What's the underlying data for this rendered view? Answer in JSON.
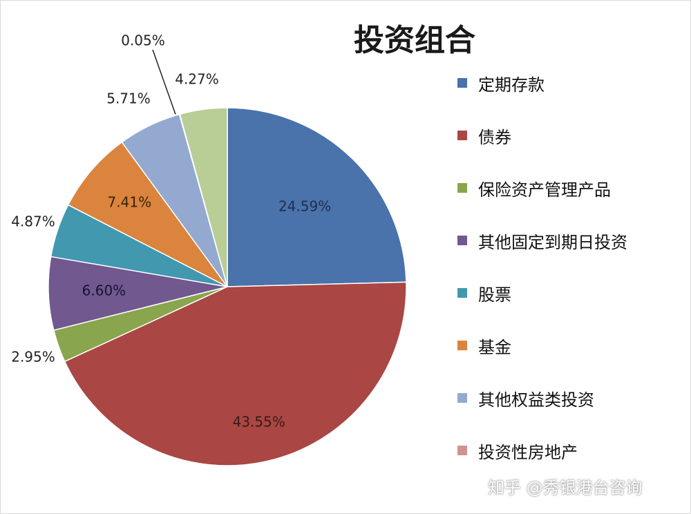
{
  "chart_data": {
    "type": "pie",
    "title": "投资组合",
    "legend_position": "right",
    "slices": [
      {
        "name": "定期存款",
        "value": 24.59,
        "label": "24.59%",
        "color": "#4a72ab"
      },
      {
        "name": "债券",
        "value": 43.55,
        "label": "43.55%",
        "color": "#aa4643"
      },
      {
        "name": "保险资产管理产品",
        "value": 2.95,
        "label": "2.95%",
        "color": "#89a54e"
      },
      {
        "name": "其他固定到期日投资",
        "value": 6.6,
        "label": "6.60%",
        "color": "#71588f"
      },
      {
        "name": "股票",
        "value": 4.87,
        "label": "4.87%",
        "color": "#4198af"
      },
      {
        "name": "基金",
        "value": 7.41,
        "label": "7.41%",
        "color": "#db843d"
      },
      {
        "name": "其他权益类投资",
        "value": 5.71,
        "label": "5.71%",
        "color": "#93a9cf"
      },
      {
        "name": "投资性房地产",
        "value": 0.05,
        "label": "0.05%",
        "color": "#d19392"
      },
      {
        "name": "",
        "value": 4.27,
        "label": "4.27%",
        "color": "#b9cd96"
      }
    ]
  },
  "legend": {
    "items": [
      {
        "label": "定期存款",
        "color": "#4a72ab"
      },
      {
        "label": "债券",
        "color": "#aa4643"
      },
      {
        "label": "保险资产管理产品",
        "color": "#89a54e"
      },
      {
        "label": "其他固定到期日投资",
        "color": "#71588f"
      },
      {
        "label": "股票",
        "color": "#4198af"
      },
      {
        "label": "基金",
        "color": "#db843d"
      },
      {
        "label": "其他权益类投资",
        "color": "#93a9cf"
      },
      {
        "label": "投资性房地产",
        "color": "#d19392"
      }
    ]
  },
  "watermark": "知乎 @秀银港台咨询"
}
